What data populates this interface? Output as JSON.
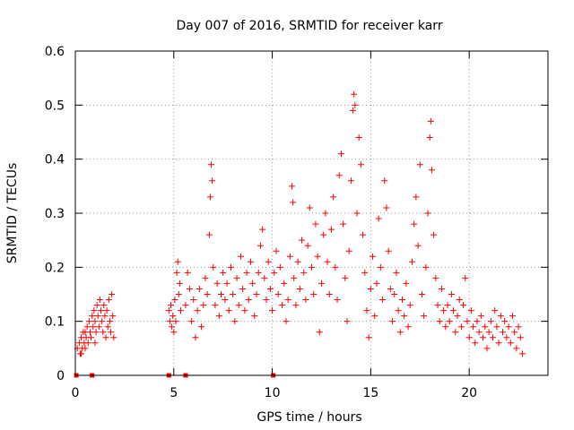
{
  "chart_data": {
    "type": "scatter",
    "title": "Day 007 of 2016, SRMTID for receiver karr",
    "xlabel": "GPS time / hours",
    "ylabel": "SRMTID / TECUs",
    "xlim": [
      0,
      24
    ],
    "ylim": [
      0,
      0.6
    ],
    "xticks": [
      0,
      5,
      10,
      15,
      20
    ],
    "yticks": [
      0,
      0.1,
      0.2,
      0.3,
      0.4,
      0.5,
      0.6
    ],
    "xtick_labels": [
      "0",
      "5",
      "10",
      "15",
      "20"
    ],
    "ytick_labels": [
      "0",
      "0.1",
      "0.2",
      "0.3",
      "0.4",
      "0.5",
      "0.6"
    ],
    "grid": true,
    "marker": "plus",
    "color": "#ff0000",
    "zero_markers_x": [
      0.05,
      0.85,
      4.75,
      5.6,
      10.05
    ],
    "series": [
      {
        "name": "SRMTID",
        "points": [
          [
            0.1,
            0.05
          ],
          [
            0.2,
            0.06
          ],
          [
            0.25,
            0.04
          ],
          [
            0.3,
            0.07
          ],
          [
            0.35,
            0.05
          ],
          [
            0.4,
            0.08
          ],
          [
            0.45,
            0.06
          ],
          [
            0.5,
            0.05
          ],
          [
            0.55,
            0.07
          ],
          [
            0.6,
            0.09
          ],
          [
            0.65,
            0.06
          ],
          [
            0.7,
            0.1
          ],
          [
            0.75,
            0.08
          ],
          [
            0.8,
            0.07
          ],
          [
            0.85,
            0.11
          ],
          [
            0.9,
            0.09
          ],
          [
            0.95,
            0.12
          ],
          [
            1.0,
            0.1
          ],
          [
            1.05,
            0.08
          ],
          [
            1.1,
            0.13
          ],
          [
            1.15,
            0.11
          ],
          [
            1.2,
            0.09
          ],
          [
            1.25,
            0.14
          ],
          [
            1.3,
            0.12
          ],
          [
            1.35,
            0.1
          ],
          [
            1.4,
            0.08
          ],
          [
            1.45,
            0.13
          ],
          [
            1.5,
            0.11
          ],
          [
            1.55,
            0.07
          ],
          [
            1.6,
            0.12
          ],
          [
            1.65,
            0.09
          ],
          [
            1.7,
            0.14
          ],
          [
            1.75,
            0.1
          ],
          [
            1.8,
            0.08
          ],
          [
            1.85,
            0.15
          ],
          [
            1.9,
            0.11
          ],
          [
            1.95,
            0.07
          ],
          [
            0.3,
            0.04
          ],
          [
            0.5,
            0.08
          ],
          [
            1.0,
            0.06
          ],
          [
            4.75,
            0.12
          ],
          [
            4.8,
            0.1
          ],
          [
            4.85,
            0.13
          ],
          [
            4.9,
            0.09
          ],
          [
            4.95,
            0.11
          ],
          [
            5.0,
            0.08
          ],
          [
            5.05,
            0.14
          ],
          [
            5.1,
            0.1
          ],
          [
            5.15,
            0.19
          ],
          [
            5.2,
            0.21
          ],
          [
            5.25,
            0.15
          ],
          [
            5.3,
            0.17
          ],
          [
            5.35,
            0.12
          ],
          [
            5.6,
            0.13
          ],
          [
            5.7,
            0.19
          ],
          [
            5.8,
            0.16
          ],
          [
            5.9,
            0.1
          ],
          [
            6.0,
            0.14
          ],
          [
            6.1,
            0.07
          ],
          [
            6.2,
            0.12
          ],
          [
            6.3,
            0.16
          ],
          [
            6.4,
            0.09
          ],
          [
            6.5,
            0.13
          ],
          [
            6.6,
            0.18
          ],
          [
            6.7,
            0.15
          ],
          [
            6.8,
            0.26
          ],
          [
            6.85,
            0.33
          ],
          [
            6.9,
            0.39
          ],
          [
            6.95,
            0.36
          ],
          [
            7.0,
            0.2
          ],
          [
            7.1,
            0.13
          ],
          [
            7.2,
            0.17
          ],
          [
            7.3,
            0.11
          ],
          [
            7.4,
            0.15
          ],
          [
            7.5,
            0.19
          ],
          [
            7.6,
            0.14
          ],
          [
            7.7,
            0.17
          ],
          [
            7.8,
            0.12
          ],
          [
            7.9,
            0.2
          ],
          [
            8.0,
            0.15
          ],
          [
            8.1,
            0.1
          ],
          [
            8.2,
            0.18
          ],
          [
            8.3,
            0.13
          ],
          [
            8.4,
            0.22
          ],
          [
            8.5,
            0.16
          ],
          [
            8.6,
            0.12
          ],
          [
            8.7,
            0.19
          ],
          [
            8.8,
            0.14
          ],
          [
            8.9,
            0.21
          ],
          [
            9.0,
            0.17
          ],
          [
            9.1,
            0.11
          ],
          [
            9.2,
            0.15
          ],
          [
            9.3,
            0.19
          ],
          [
            9.4,
            0.24
          ],
          [
            9.5,
            0.27
          ],
          [
            9.6,
            0.18
          ],
          [
            9.7,
            0.14
          ],
          [
            9.8,
            0.21
          ],
          [
            9.9,
            0.16
          ],
          [
            10.0,
            0.12
          ],
          [
            10.1,
            0.19
          ],
          [
            10.2,
            0.23
          ],
          [
            10.3,
            0.15
          ],
          [
            10.4,
            0.2
          ],
          [
            10.5,
            0.13
          ],
          [
            10.6,
            0.17
          ],
          [
            10.7,
            0.1
          ],
          [
            10.8,
            0.14
          ],
          [
            10.9,
            0.22
          ],
          [
            11.0,
            0.35
          ],
          [
            11.05,
            0.32
          ],
          [
            11.1,
            0.18
          ],
          [
            11.2,
            0.13
          ],
          [
            11.3,
            0.21
          ],
          [
            11.4,
            0.16
          ],
          [
            11.5,
            0.25
          ],
          [
            11.6,
            0.19
          ],
          [
            11.7,
            0.14
          ],
          [
            11.8,
            0.24
          ],
          [
            11.9,
            0.31
          ],
          [
            12.0,
            0.2
          ],
          [
            12.1,
            0.15
          ],
          [
            12.2,
            0.28
          ],
          [
            12.3,
            0.22
          ],
          [
            12.4,
            0.08
          ],
          [
            12.5,
            0.17
          ],
          [
            12.6,
            0.26
          ],
          [
            12.7,
            0.3
          ],
          [
            12.8,
            0.21
          ],
          [
            12.9,
            0.15
          ],
          [
            13.0,
            0.27
          ],
          [
            13.1,
            0.33
          ],
          [
            13.2,
            0.2
          ],
          [
            13.3,
            0.14
          ],
          [
            13.4,
            0.37
          ],
          [
            13.5,
            0.41
          ],
          [
            13.6,
            0.28
          ],
          [
            13.7,
            0.18
          ],
          [
            13.8,
            0.1
          ],
          [
            13.9,
            0.23
          ],
          [
            14.0,
            0.36
          ],
          [
            14.1,
            0.49
          ],
          [
            14.15,
            0.52
          ],
          [
            14.2,
            0.5
          ],
          [
            14.3,
            0.3
          ],
          [
            14.4,
            0.44
          ],
          [
            14.5,
            0.39
          ],
          [
            14.6,
            0.26
          ],
          [
            14.7,
            0.19
          ],
          [
            14.8,
            0.12
          ],
          [
            14.9,
            0.07
          ],
          [
            15.0,
            0.16
          ],
          [
            15.1,
            0.22
          ],
          [
            15.2,
            0.11
          ],
          [
            15.3,
            0.17
          ],
          [
            15.4,
            0.29
          ],
          [
            15.5,
            0.2
          ],
          [
            15.6,
            0.14
          ],
          [
            15.7,
            0.36
          ],
          [
            15.8,
            0.31
          ],
          [
            15.9,
            0.23
          ],
          [
            16.0,
            0.16
          ],
          [
            16.1,
            0.1
          ],
          [
            16.2,
            0.15
          ],
          [
            16.3,
            0.19
          ],
          [
            16.4,
            0.12
          ],
          [
            16.5,
            0.08
          ],
          [
            16.6,
            0.14
          ],
          [
            16.7,
            0.11
          ],
          [
            16.8,
            0.17
          ],
          [
            16.9,
            0.09
          ],
          [
            17.0,
            0.13
          ],
          [
            17.1,
            0.21
          ],
          [
            17.2,
            0.28
          ],
          [
            17.3,
            0.33
          ],
          [
            17.4,
            0.24
          ],
          [
            17.5,
            0.39
          ],
          [
            17.6,
            0.15
          ],
          [
            17.7,
            0.11
          ],
          [
            17.8,
            0.2
          ],
          [
            17.9,
            0.3
          ],
          [
            18.0,
            0.44
          ],
          [
            18.05,
            0.47
          ],
          [
            18.1,
            0.38
          ],
          [
            18.2,
            0.26
          ],
          [
            18.3,
            0.18
          ],
          [
            18.4,
            0.13
          ],
          [
            18.5,
            0.1
          ],
          [
            18.6,
            0.16
          ],
          [
            18.7,
            0.12
          ],
          [
            18.8,
            0.09
          ],
          [
            18.9,
            0.13
          ],
          [
            19.0,
            0.1
          ],
          [
            19.1,
            0.15
          ],
          [
            19.2,
            0.12
          ],
          [
            19.3,
            0.08
          ],
          [
            19.4,
            0.11
          ],
          [
            19.5,
            0.14
          ],
          [
            19.6,
            0.09
          ],
          [
            19.7,
            0.13
          ],
          [
            19.8,
            0.18
          ],
          [
            19.9,
            0.1
          ],
          [
            20.0,
            0.07
          ],
          [
            20.1,
            0.12
          ],
          [
            20.2,
            0.09
          ],
          [
            20.3,
            0.06
          ],
          [
            20.4,
            0.1
          ],
          [
            20.5,
            0.08
          ],
          [
            20.6,
            0.11
          ],
          [
            20.7,
            0.07
          ],
          [
            20.8,
            0.09
          ],
          [
            20.9,
            0.05
          ],
          [
            21.0,
            0.08
          ],
          [
            21.1,
            0.1
          ],
          [
            21.2,
            0.07
          ],
          [
            21.3,
            0.12
          ],
          [
            21.4,
            0.09
          ],
          [
            21.5,
            0.06
          ],
          [
            21.6,
            0.11
          ],
          [
            21.7,
            0.08
          ],
          [
            21.8,
            0.1
          ],
          [
            21.9,
            0.07
          ],
          [
            22.0,
            0.09
          ],
          [
            22.1,
            0.06
          ],
          [
            22.2,
            0.11
          ],
          [
            22.3,
            0.08
          ],
          [
            22.4,
            0.05
          ],
          [
            22.5,
            0.09
          ],
          [
            22.6,
            0.07
          ],
          [
            22.7,
            0.04
          ]
        ]
      }
    ]
  }
}
